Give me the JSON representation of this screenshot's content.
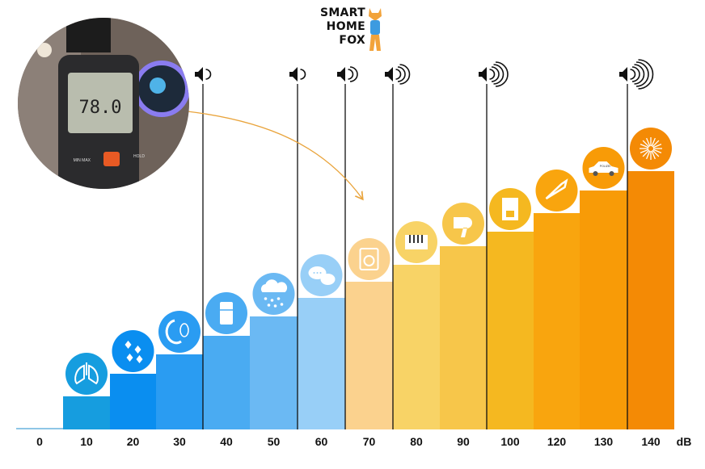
{
  "logo": {
    "line1": "SMART",
    "line2": "HOME",
    "line3": "FOX"
  },
  "meter_photo": {
    "reading": "78.0",
    "btn_minmax": "MIN MAX",
    "btn_hold": "HOLD"
  },
  "chart_data": {
    "type": "bar",
    "title": "",
    "xlabel": "",
    "unit_label": "dB",
    "categories": [
      "0",
      "10",
      "20",
      "30",
      "40",
      "50",
      "60",
      "70",
      "80",
      "90",
      "100",
      "120",
      "130",
      "140"
    ],
    "values": [
      0,
      10,
      20,
      30,
      40,
      50,
      60,
      70,
      80,
      90,
      100,
      120,
      130,
      140
    ],
    "colors": [
      "#8ec6e6",
      "#169ddf",
      "#0a8ef0",
      "#2a9cf2",
      "#4aabf2",
      "#6bb9f3",
      "#98cff7",
      "#fbd28e",
      "#f8d366",
      "#f7c64a",
      "#f5b820",
      "#f9a50e",
      "#f89b07",
      "#f48a05"
    ],
    "icons": [
      "",
      "lungs-icon",
      "leaves-icon",
      "whisper-icon",
      "fridge-icon",
      "rain-cloud-icon",
      "chat-bubbles-icon",
      "washing-machine-icon",
      "piano-icon",
      "hair-dryer-icon",
      "coffee-machine-icon",
      "trumpet-icon",
      "police-car-icon",
      "fireworks-icon"
    ],
    "police_car_text": "POLIZEI",
    "divider_after": [
      "30",
      "50",
      "60",
      "70",
      "90",
      "130"
    ],
    "speaker_waves": [
      1,
      1,
      2,
      3,
      4,
      5
    ],
    "grid": false,
    "legend": "none"
  }
}
